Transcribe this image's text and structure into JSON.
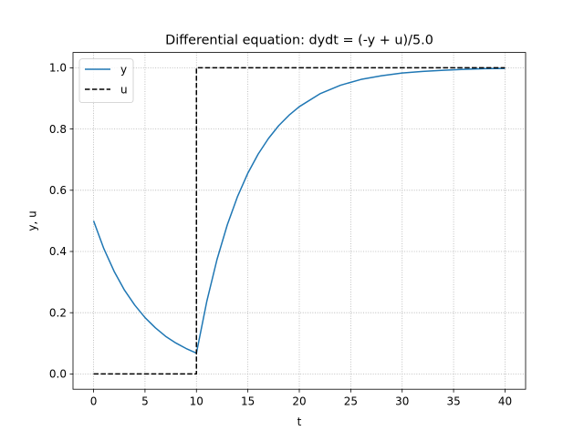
{
  "chart_data": {
    "type": "line",
    "title": "Differential equation: dydt = (-y + u)/5.0",
    "xlabel": "t",
    "ylabel": "y, u",
    "xlim": [
      -2,
      42
    ],
    "ylim": [
      -0.05,
      1.05
    ],
    "xticks": [
      0,
      5,
      10,
      15,
      20,
      25,
      30,
      35,
      40
    ],
    "yticks": [
      0.0,
      0.2,
      0.4,
      0.6,
      0.8,
      1.0
    ],
    "xtick_labels": [
      "0",
      "5",
      "10",
      "15",
      "20",
      "25",
      "30",
      "35",
      "40"
    ],
    "ytick_labels": [
      "0.0",
      "0.2",
      "0.4",
      "0.6",
      "0.8",
      "1.0"
    ],
    "grid": true,
    "legend_position": "top-left",
    "series": [
      {
        "name": "y",
        "color": "#1f77b4",
        "style": "solid",
        "x": [
          0,
          1,
          2,
          3,
          4,
          5,
          6,
          7,
          8,
          9,
          10,
          11,
          12,
          13,
          14,
          15,
          16,
          17,
          18,
          19,
          20,
          22,
          24,
          26,
          28,
          30,
          32,
          34,
          36,
          38,
          40
        ],
        "y": [
          0.5,
          0.409,
          0.335,
          0.274,
          0.225,
          0.184,
          0.151,
          0.123,
          0.101,
          0.083,
          0.068,
          0.236,
          0.374,
          0.487,
          0.58,
          0.656,
          0.718,
          0.769,
          0.811,
          0.845,
          0.873,
          0.915,
          0.943,
          0.962,
          0.974,
          0.983,
          0.988,
          0.992,
          0.995,
          0.997,
          0.998
        ]
      },
      {
        "name": "u",
        "color": "#000000",
        "style": "dashed",
        "x": [
          0,
          10,
          10,
          40
        ],
        "y": [
          0,
          0,
          1,
          1
        ]
      }
    ]
  }
}
